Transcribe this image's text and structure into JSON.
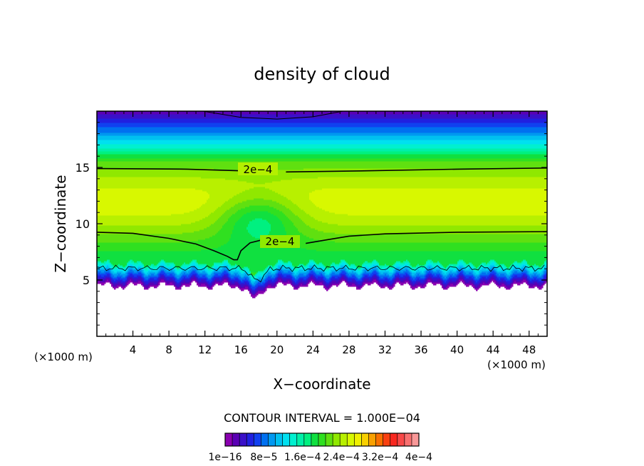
{
  "chart_data": {
    "type": "heatmap",
    "title": "density of cloud",
    "xlabel": "X−coordinate",
    "ylabel": "Z−coordinate",
    "x_unit_label": "(×1000 m)",
    "y_unit_label": "(×1000 m)",
    "xlim": [
      0,
      50
    ],
    "ylim": [
      0,
      20
    ],
    "x_ticks": [
      4,
      8,
      12,
      16,
      20,
      24,
      28,
      32,
      36,
      40,
      44,
      48
    ],
    "y_ticks": [
      5,
      10,
      15
    ],
    "contour_interval_label": "CONTOUR INTERVAL = 1.000E−04",
    "contour_labels": [
      "2e−4",
      "2e−4"
    ],
    "colorbar": {
      "min": 1e-16,
      "max": 0.0004,
      "tick_labels": [
        "1e−16",
        "8e−5",
        "1.6e−4",
        "2.4e−4",
        "3.2e−4",
        "4e−4"
      ],
      "colors": [
        "#8a00b0",
        "#5a00b4",
        "#3a10c8",
        "#2020e0",
        "#1040f0",
        "#0070f0",
        "#0098f0",
        "#00c0f0",
        "#00e0f0",
        "#00f0d0",
        "#00f0a8",
        "#00f080",
        "#10e040",
        "#30e020",
        "#60e010",
        "#90e800",
        "#b8f000",
        "#d8f800",
        "#f0f000",
        "#f8d000",
        "#f8a000",
        "#f87000",
        "#f84010",
        "#f82820",
        "#f84848",
        "#f87070",
        "#f89898"
      ]
    },
    "field_summary": {
      "cloud_base_z": 4.5,
      "cloud_top_z": 20,
      "peak_value": 0.00026,
      "peak_layer_z": [
        10,
        13.5
      ],
      "dip_center_x": 17.5,
      "dip_min_z": 3.3
    }
  }
}
